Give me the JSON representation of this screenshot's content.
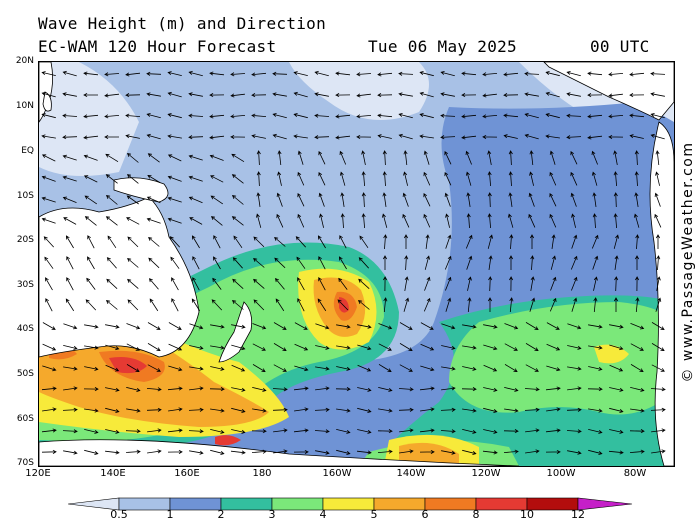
{
  "header": {
    "title_line1": "Wave Height (m) and Direction",
    "model": "EC-WAM 120 Hour Forecast",
    "date": "Tue 06 May 2025",
    "time": "00 UTC"
  },
  "credit": "© www.PassageWeather.com",
  "axes": {
    "lat_labels": [
      "20N",
      "10N",
      "EQ",
      "10S",
      "20S",
      "30S",
      "40S",
      "50S",
      "60S",
      "70S"
    ],
    "lon_labels": [
      "120E",
      "140E",
      "160E",
      "180",
      "160W",
      "140W",
      "120W",
      "100W",
      "80W"
    ]
  },
  "legend": {
    "labels": [
      "0.5",
      "1",
      "2",
      "3",
      "4",
      "5",
      "6",
      "8",
      "10",
      "12"
    ],
    "colors": [
      "#dde6f5",
      "#a8c1e6",
      "#6f93d5",
      "#33bf9f",
      "#7be87a",
      "#f7ea3a",
      "#f5a92c",
      "#f07a22",
      "#e53a33",
      "#b30d0d",
      "#c51fc8"
    ]
  },
  "colors": {
    "ocean_calm": "#a8c1e6",
    "land": "#ffffff",
    "coast": "#000000"
  }
}
